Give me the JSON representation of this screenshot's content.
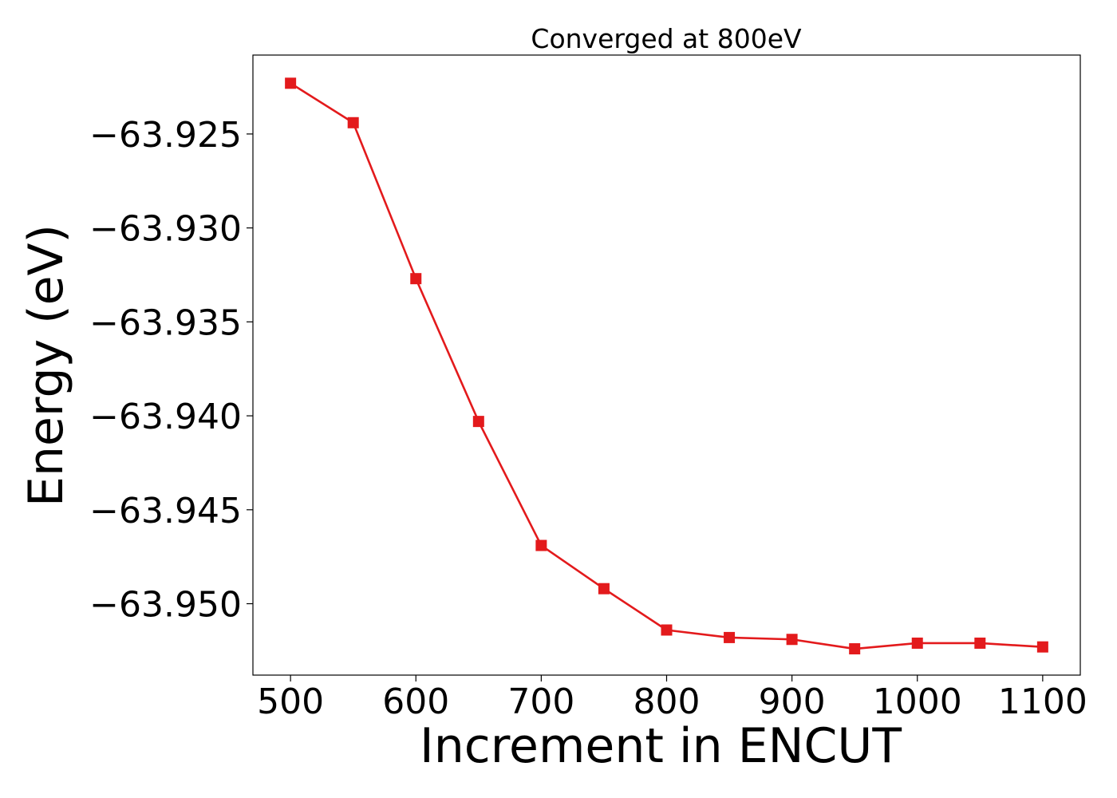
{
  "chart_data": {
    "type": "line",
    "title": "Converged at 800eV",
    "xlabel": "Increment in ENCUT",
    "ylabel": "Energy (eV)",
    "x": [
      500,
      550,
      600,
      650,
      700,
      750,
      800,
      850,
      900,
      950,
      1000,
      1050,
      1100
    ],
    "series": [
      {
        "values": [
          -63.9223,
          -63.9244,
          -63.9327,
          -63.9403,
          -63.9469,
          -63.9492,
          -63.9514,
          -63.9518,
          -63.9519,
          -63.9524,
          -63.9521,
          -63.9521,
          -63.9523
        ],
        "color": "#e31a1c",
        "marker": "square"
      }
    ],
    "xticks": [
      500,
      600,
      700,
      800,
      900,
      1000,
      1100
    ],
    "xtick_labels": [
      "500",
      "600",
      "700",
      "800",
      "900",
      "1000",
      "1100"
    ],
    "yticks": [
      -63.925,
      -63.93,
      -63.935,
      -63.94,
      -63.945,
      -63.95
    ],
    "ytick_labels": [
      "−63.925",
      "−63.930",
      "−63.935",
      "−63.940",
      "−63.945",
      "−63.950"
    ],
    "xlim": [
      470,
      1130
    ],
    "ylim": [
      -63.9538,
      -63.9208
    ],
    "grid": false,
    "legend": "none"
  }
}
